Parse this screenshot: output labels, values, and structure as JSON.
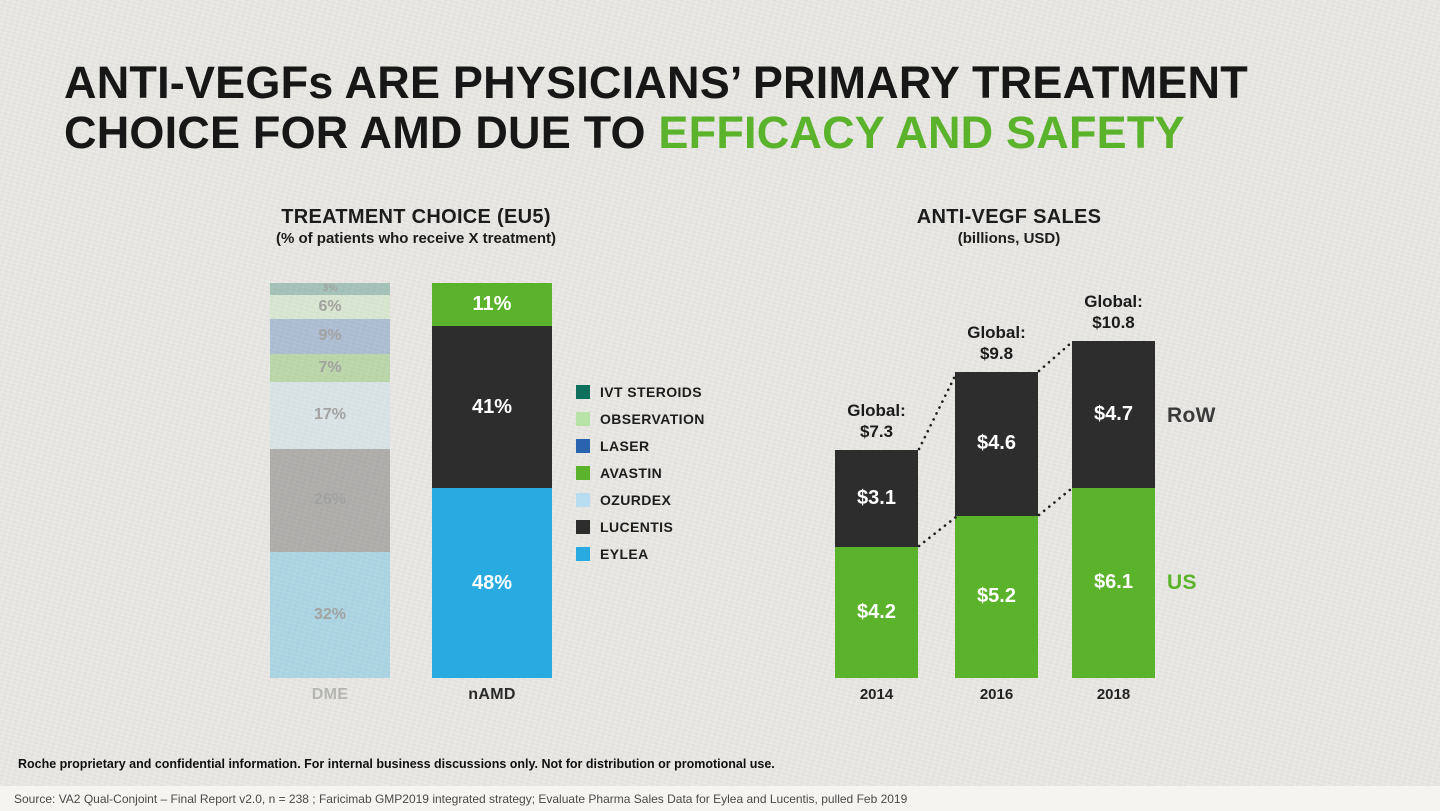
{
  "header": {
    "line1": "ANTI-VEGFs ARE PHYSICIANS’ PRIMARY TREATMENT",
    "line2_black": "CHOICE FOR AMD DUE TO ",
    "line2_green": "EFFICACY AND SAFETY"
  },
  "colors": {
    "accent_green": "#5bb32b",
    "eylea_blue": "#29abe2",
    "lucentis_dark": "#2d2d2d",
    "background": "#e8e7e3"
  },
  "chart_data": [
    {
      "type": "bar",
      "stacked": true,
      "title": "TREATMENT CHOICE (EU5)",
      "subtitle": "(% of patients who receive X treatment)",
      "unit": "% of patients",
      "categories": [
        "DME",
        "nAMD"
      ],
      "ylim": [
        0,
        100
      ],
      "legend_position": "right",
      "legend": [
        {
          "name": "IVT STEROIDS",
          "color": "#0e6f5c"
        },
        {
          "name": "OBSERVATION",
          "color": "#b7e3a8"
        },
        {
          "name": "LASER",
          "color": "#2a63ae"
        },
        {
          "name": "AVASTIN",
          "color": "#5bb32b"
        },
        {
          "name": "OZURDEX",
          "color": "#b9ddf0"
        },
        {
          "name": "LUCENTIS",
          "color": "#2d2d2d"
        },
        {
          "name": "EYLEA",
          "color": "#29abe2"
        }
      ],
      "bars": [
        {
          "category": "DME",
          "faded": true,
          "segments_top_to_bottom": [
            {
              "label": "IVT STEROIDS",
              "value": 3
            },
            {
              "label": "OBSERVATION",
              "value": 6
            },
            {
              "label": "LASER",
              "value": 9
            },
            {
              "label": "AVASTIN",
              "value": 7
            },
            {
              "label": "OZURDEX",
              "value": 17
            },
            {
              "label": "LUCENTIS",
              "value": 26
            },
            {
              "label": "EYLEA",
              "value": 32
            }
          ]
        },
        {
          "category": "nAMD",
          "faded": false,
          "segments_top_to_bottom": [
            {
              "label": "AVASTIN",
              "value": 11
            },
            {
              "label": "LUCENTIS",
              "value": 41
            },
            {
              "label": "EYLEA",
              "value": 48
            }
          ]
        }
      ]
    },
    {
      "type": "bar",
      "stacked": true,
      "title": "ANTI-VEGF SALES",
      "subtitle": "(billions, USD)",
      "unit": "billions USD",
      "categories": [
        "2014",
        "2016",
        "2018"
      ],
      "series_labels": {
        "top": "RoW",
        "bottom": "US"
      },
      "colors": {
        "us": "#5bb32b",
        "row": "#2d2d2d"
      },
      "bars": [
        {
          "category": "2014",
          "global_label": "Global:",
          "global_value": "$7.3",
          "us": 4.2,
          "row": 3.1,
          "us_label": "$4.2",
          "row_label": "$3.1"
        },
        {
          "category": "2016",
          "global_label": "Global:",
          "global_value": "$9.8",
          "us": 5.2,
          "row": 4.6,
          "us_label": "$5.2",
          "row_label": "$4.6"
        },
        {
          "category": "2018",
          "global_label": "Global:",
          "global_value": "$10.8",
          "us": 6.1,
          "row": 4.7,
          "us_label": "$6.1",
          "row_label": "$4.7"
        }
      ]
    }
  ],
  "footer": {
    "confidential": "Roche proprietary and confidential information. For internal business discussions only. Not for distribution or promotional use.",
    "source": "Source: VA2 Qual-Conjoint – Final Report v2.0, n = 238 ; Faricimab GMP2019 integrated strategy; Evaluate Pharma Sales Data for Eylea and Lucentis, pulled Feb 2019"
  }
}
